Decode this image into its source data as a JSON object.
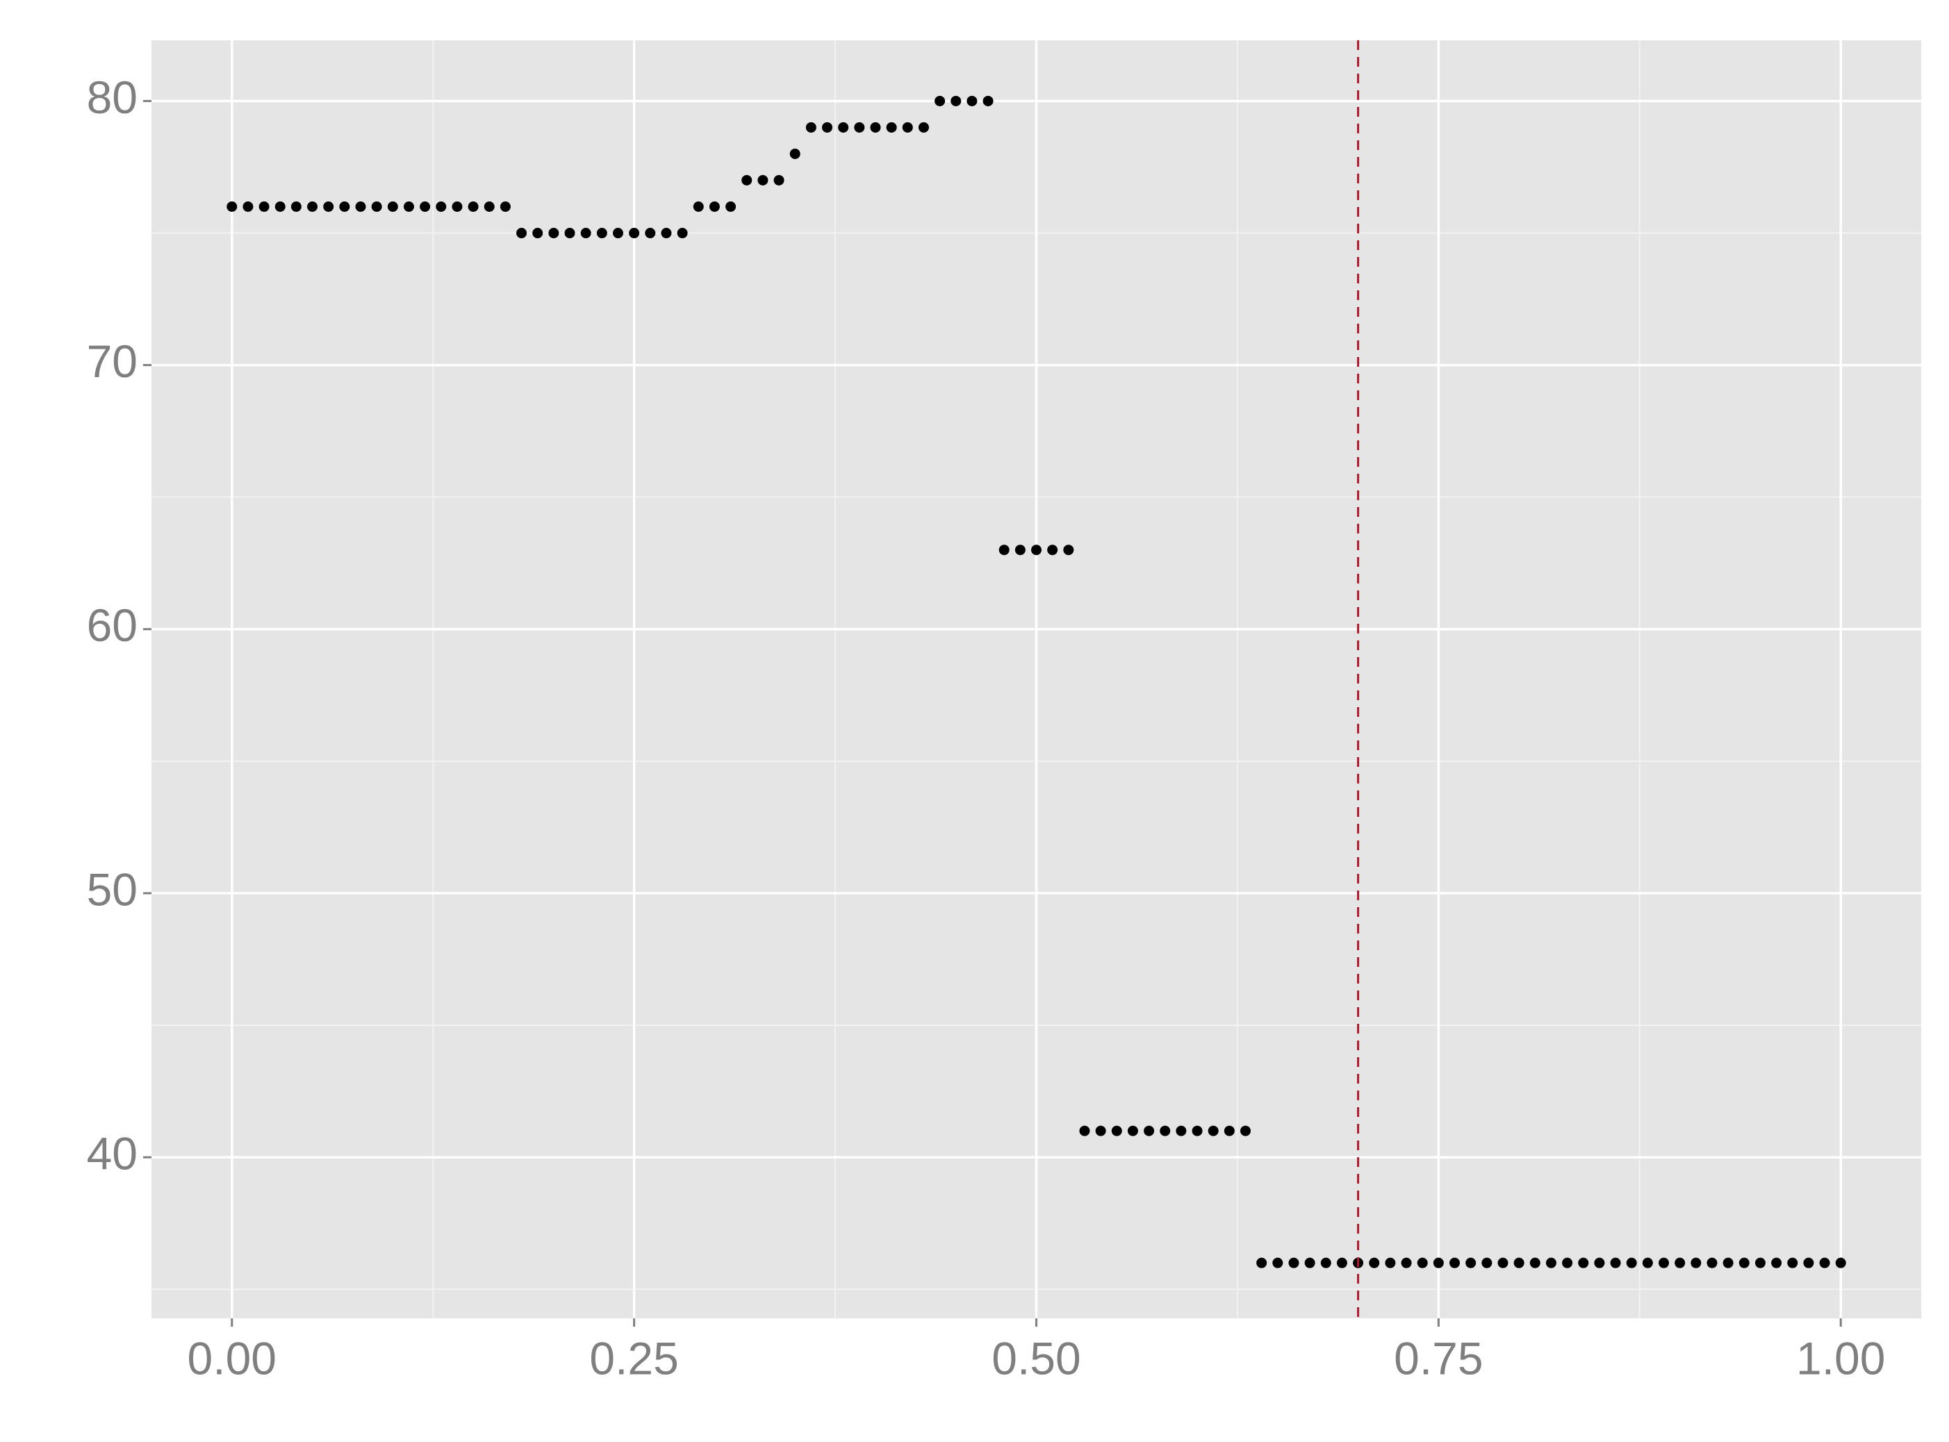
{
  "chart_data": {
    "type": "scatter",
    "x": [
      0,
      0.01,
      0.02,
      0.03,
      0.04,
      0.05,
      0.06,
      0.07,
      0.08,
      0.09,
      0.1,
      0.11,
      0.12,
      0.13,
      0.14,
      0.15,
      0.16,
      0.17,
      0.18,
      0.19,
      0.2,
      0.21,
      0.22,
      0.23,
      0.24,
      0.25,
      0.26,
      0.27,
      0.28,
      0.29,
      0.3,
      0.31,
      0.32,
      0.33,
      0.34,
      0.35,
      0.36,
      0.37,
      0.38,
      0.39,
      0.4,
      0.41,
      0.42,
      0.43,
      0.44,
      0.45,
      0.46,
      0.47,
      0.48,
      0.49,
      0.5,
      0.51,
      0.52,
      0.53,
      0.54,
      0.55,
      0.56,
      0.57,
      0.58,
      0.59,
      0.6,
      0.61,
      0.62,
      0.63,
      0.64,
      0.65,
      0.66,
      0.67,
      0.68,
      0.69,
      0.7,
      0.71,
      0.72,
      0.73,
      0.74,
      0.75,
      0.76,
      0.77,
      0.78,
      0.79,
      0.8,
      0.81,
      0.82,
      0.83,
      0.84,
      0.85,
      0.86,
      0.87,
      0.88,
      0.89,
      0.9,
      0.91,
      0.92,
      0.93,
      0.94,
      0.95,
      0.96,
      0.97,
      0.98,
      0.99,
      1
    ],
    "values": [
      76,
      76,
      76,
      76,
      76,
      76,
      76,
      76,
      76,
      76,
      76,
      76,
      76,
      76,
      76,
      76,
      76,
      76,
      75,
      75,
      75,
      75,
      75,
      75,
      75,
      75,
      75,
      75,
      75,
      76,
      76,
      76,
      77,
      77,
      77,
      78,
      79,
      79,
      79,
      79,
      79,
      79,
      79,
      79,
      80,
      80,
      80,
      80,
      63,
      63,
      63,
      63,
      63,
      41,
      41,
      41,
      41,
      41,
      41,
      41,
      41,
      41,
      41,
      41,
      36,
      36,
      36,
      36,
      36,
      36,
      36,
      36,
      36,
      36,
      36,
      36,
      36,
      36,
      36,
      36,
      36,
      36,
      36,
      36,
      36,
      36,
      36,
      36,
      36,
      36,
      36,
      36,
      36,
      36,
      36,
      36,
      36,
      36,
      36,
      36,
      36
    ],
    "color": "#000000",
    "xlim": [
      -0.05,
      1.05
    ],
    "ylim": [
      33.9,
      82.3
    ],
    "xticks": [
      {
        "value": 0,
        "label": "0.00"
      },
      {
        "value": 0.25,
        "label": "0.25"
      },
      {
        "value": 0.5,
        "label": "0.50"
      },
      {
        "value": 0.75,
        "label": "0.75"
      },
      {
        "value": 1,
        "label": "1.00"
      }
    ],
    "yticks": [
      40,
      50,
      60,
      70,
      80
    ],
    "minor_xticks": [
      0.125,
      0.375,
      0.625,
      0.875
    ],
    "minor_yticks": [
      35,
      45,
      55,
      65,
      75
    ],
    "grid": true,
    "vline": {
      "value": 0.7,
      "color": "#b2182b",
      "dashed": true
    }
  }
}
